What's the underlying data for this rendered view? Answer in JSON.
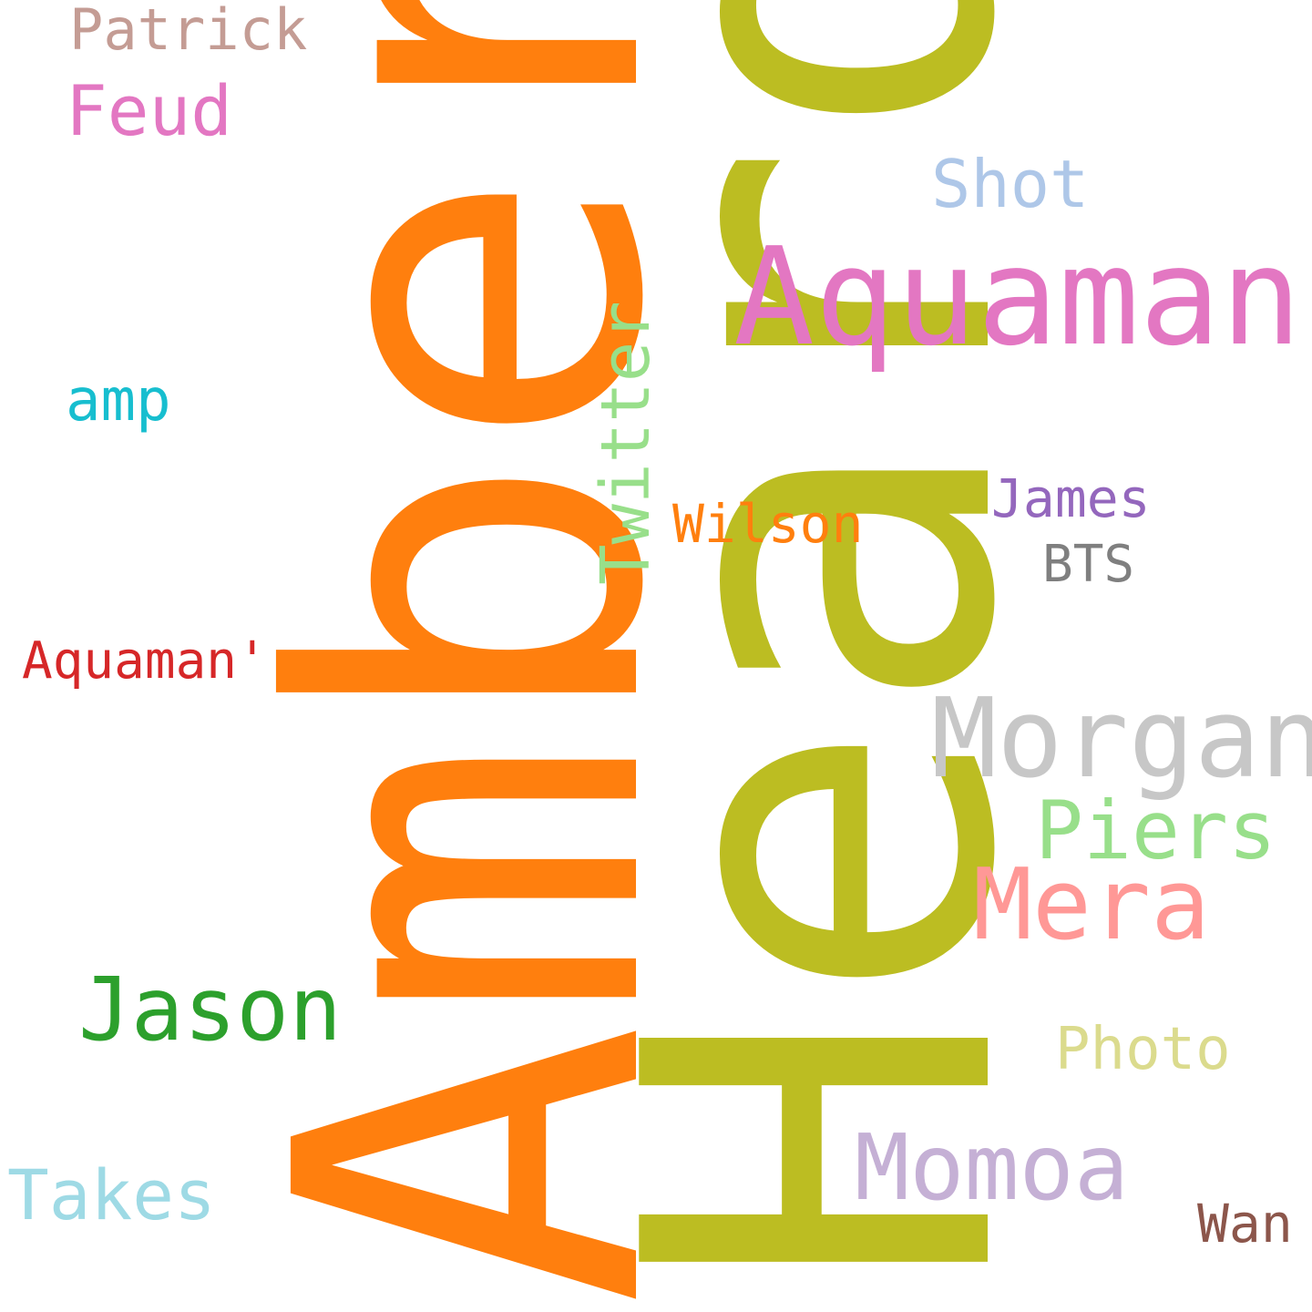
{
  "words": {
    "amber": {
      "text": "Amber",
      "color": "#ff7f0e"
    },
    "heard": {
      "text": "Heard",
      "color": "#bcbd22"
    },
    "aquaman": {
      "text": "Aquaman",
      "color": "#e377c2"
    },
    "morgan": {
      "text": "Morgan",
      "color": "#c7c7c7"
    },
    "piers": {
      "text": "Piers",
      "color": "#98df8a"
    },
    "mera": {
      "text": "Mera",
      "color": "#ff9896"
    },
    "jason": {
      "text": "Jason",
      "color": "#2ca02c"
    },
    "momoa": {
      "text": "Momoa",
      "color": "#c5b0d5"
    },
    "twitter": {
      "text": "Twitter",
      "color": "#98df8a"
    },
    "shot": {
      "text": "Shot",
      "color": "#aec7e8"
    },
    "feud": {
      "text": "Feud",
      "color": "#e377c2"
    },
    "patrick": {
      "text": "Patrick",
      "color": "#c49c94"
    },
    "amp": {
      "text": "amp",
      "color": "#17becf"
    },
    "wilson": {
      "text": "Wilson",
      "color": "#ff7f0e"
    },
    "james": {
      "text": "James",
      "color": "#9467bd"
    },
    "bts": {
      "text": "BTS",
      "color": "#7f7f7f"
    },
    "aquamanq": {
      "text": "Aquaman'",
      "color": "#d62728"
    },
    "photo": {
      "text": "Photo",
      "color": "#dbdb8d"
    },
    "takes": {
      "text": "Takes",
      "color": "#9edae5"
    },
    "wan": {
      "text": "Wan",
      "color": "#8c564b"
    }
  }
}
